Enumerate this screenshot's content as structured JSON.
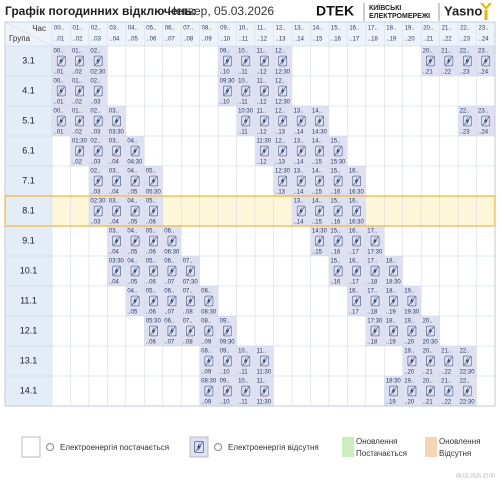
{
  "header": {
    "title": "Графік погодинних відключень:",
    "date": "Четвер, 05.03.2026",
    "brand": "DTEK",
    "brand_sub1": "КИЇВСЬКІ",
    "brand_sub2": "ЕЛЕКТРОМЕРЕЖІ",
    "brand2": "Yasno"
  },
  "table": {
    "time_label": "Час",
    "group_label": "Група",
    "outage_color": "#dfe1f3",
    "hours": [
      [
        "00..",
        "..01"
      ],
      [
        "01..",
        "..02"
      ],
      [
        "02..",
        "..03"
      ],
      [
        "03..",
        "..04"
      ],
      [
        "04..",
        "..05"
      ],
      [
        "05..",
        "..06"
      ],
      [
        "06..",
        "..07"
      ],
      [
        "07..",
        "..08"
      ],
      [
        "08..",
        "..09"
      ],
      [
        "09..",
        "..10"
      ],
      [
        "10..",
        "..11"
      ],
      [
        "11..",
        "..12"
      ],
      [
        "12..",
        "..13"
      ],
      [
        "13..",
        "..14"
      ],
      [
        "14..",
        "..15"
      ],
      [
        "15..",
        "..16"
      ],
      [
        "16..",
        "..17"
      ],
      [
        "17..",
        "..18"
      ],
      [
        "18..",
        "..19"
      ],
      [
        "19..",
        "..20"
      ],
      [
        "20..",
        "..21"
      ],
      [
        "21..",
        "..22"
      ],
      [
        "22..",
        "..23"
      ],
      [
        "23..",
        "..24"
      ]
    ],
    "groups": [
      {
        "name": "3.1",
        "cells": [
          [
            0,
            "00..",
            "..01"
          ],
          [
            1,
            "01..",
            "..02"
          ],
          [
            2,
            "02..",
            "02:30"
          ],
          [
            9,
            "09..",
            "..10"
          ],
          [
            10,
            "10..",
            "..11"
          ],
          [
            11,
            "11..",
            "..12"
          ],
          [
            12,
            "12..",
            "12:30"
          ],
          [
            20,
            "20..",
            "..21"
          ],
          [
            21,
            "21..",
            "..22"
          ],
          [
            22,
            "22..",
            "..23"
          ],
          [
            23,
            "23..",
            "..24"
          ]
        ]
      },
      {
        "name": "4.1",
        "cells": [
          [
            0,
            "00..",
            "..01"
          ],
          [
            1,
            "01..",
            "..02"
          ],
          [
            2,
            "02..",
            "..03"
          ],
          [
            9,
            "09:30",
            "..10"
          ],
          [
            10,
            "10..",
            "..11"
          ],
          [
            11,
            "11..",
            "..12"
          ],
          [
            12,
            "12..",
            "12:30"
          ]
        ]
      },
      {
        "name": "5.1",
        "cells": [
          [
            0,
            "00..",
            "..01"
          ],
          [
            1,
            "01..",
            "..02"
          ],
          [
            2,
            "02..",
            "..03"
          ],
          [
            3,
            "03..",
            "03:30"
          ],
          [
            10,
            "10:30",
            "..11"
          ],
          [
            11,
            "11..",
            "..12"
          ],
          [
            12,
            "12..",
            "..13"
          ],
          [
            13,
            "13..",
            "..14"
          ],
          [
            14,
            "14..",
            "14:30"
          ],
          [
            22,
            "22..",
            "..23"
          ],
          [
            23,
            "23..",
            "..24"
          ]
        ]
      },
      {
        "name": "6.1",
        "cells": [
          [
            1,
            "01:30",
            "..02"
          ],
          [
            2,
            "02..",
            "..03"
          ],
          [
            3,
            "03..",
            "..04"
          ],
          [
            4,
            "04..",
            "04:30"
          ],
          [
            11,
            "11:30",
            "..12"
          ],
          [
            12,
            "12..",
            "..13"
          ],
          [
            13,
            "13..",
            "..14"
          ],
          [
            14,
            "14..",
            "..15"
          ],
          [
            15,
            "15..",
            "15:30"
          ]
        ]
      },
      {
        "name": "7.1",
        "cells": [
          [
            2,
            "02..",
            "..03"
          ],
          [
            3,
            "03..",
            "..04"
          ],
          [
            4,
            "04..",
            "..05"
          ],
          [
            5,
            "05..",
            "05:30"
          ],
          [
            12,
            "12:30",
            "..13"
          ],
          [
            13,
            "13..",
            "..14"
          ],
          [
            14,
            "14..",
            "..15"
          ],
          [
            15,
            "15..",
            "..16"
          ],
          [
            16,
            "16..",
            "16:30"
          ]
        ]
      },
      {
        "name": "8.1",
        "highlighted": true,
        "cells": [
          [
            2,
            "02:30",
            "..03"
          ],
          [
            3,
            "03..",
            "..04"
          ],
          [
            4,
            "04..",
            "..05"
          ],
          [
            5,
            "05..",
            "..06"
          ],
          [
            13,
            "13..",
            "..14"
          ],
          [
            14,
            "14..",
            "..15"
          ],
          [
            15,
            "15..",
            "..16"
          ],
          [
            16,
            "16..",
            "16:30"
          ]
        ]
      },
      {
        "name": "9.1",
        "cells": [
          [
            3,
            "03..",
            "..04"
          ],
          [
            4,
            "04..",
            "..05"
          ],
          [
            5,
            "05..",
            "..06"
          ],
          [
            6,
            "06..",
            "06:30"
          ],
          [
            14,
            "14:30",
            "..15"
          ],
          [
            15,
            "15..",
            "..16"
          ],
          [
            16,
            "16..",
            "..17"
          ],
          [
            17,
            "17..",
            "17:30"
          ]
        ]
      },
      {
        "name": "10.1",
        "cells": [
          [
            3,
            "03:30",
            "..04"
          ],
          [
            4,
            "04..",
            "..05"
          ],
          [
            5,
            "05..",
            "..06"
          ],
          [
            6,
            "06..",
            "..07"
          ],
          [
            7,
            "07..",
            "07:30"
          ],
          [
            15,
            "15..",
            "..16"
          ],
          [
            16,
            "16..",
            "..17"
          ],
          [
            17,
            "17..",
            "..18"
          ],
          [
            18,
            "18..",
            "18:30"
          ]
        ]
      },
      {
        "name": "11.1",
        "cells": [
          [
            4,
            "04..",
            "..05"
          ],
          [
            5,
            "05..",
            "..06"
          ],
          [
            6,
            "06..",
            "..07"
          ],
          [
            7,
            "07..",
            "..08"
          ],
          [
            8,
            "08..",
            "08:30"
          ],
          [
            16,
            "16..",
            "..17"
          ],
          [
            17,
            "17..",
            "..18"
          ],
          [
            18,
            "18..",
            "..19"
          ],
          [
            19,
            "19..",
            "19:30"
          ]
        ]
      },
      {
        "name": "12.1",
        "cells": [
          [
            5,
            "05:30",
            "..06"
          ],
          [
            6,
            "06..",
            "..07"
          ],
          [
            7,
            "07..",
            "..08"
          ],
          [
            8,
            "08..",
            "..09"
          ],
          [
            9,
            "09..",
            "09:30"
          ],
          [
            17,
            "17:30",
            "..18"
          ],
          [
            18,
            "18..",
            "..19"
          ],
          [
            19,
            "19..",
            "..20"
          ],
          [
            20,
            "20..",
            "20:30"
          ]
        ]
      },
      {
        "name": "13.1",
        "cells": [
          [
            8,
            "08..",
            "..09"
          ],
          [
            9,
            "09..",
            "..10"
          ],
          [
            10,
            "10..",
            "..11"
          ],
          [
            11,
            "11..",
            "11:30"
          ],
          [
            19,
            "19..",
            "..20"
          ],
          [
            20,
            "20..",
            "..21"
          ],
          [
            21,
            "21..",
            "..22"
          ],
          [
            22,
            "22..",
            "22:30"
          ]
        ]
      },
      {
        "name": "14.1",
        "cells": [
          [
            8,
            "08:30",
            "..09"
          ],
          [
            9,
            "09..",
            "..10"
          ],
          [
            10,
            "10..",
            "..11"
          ],
          [
            11,
            "11..",
            "11:30"
          ],
          [
            18,
            "18:30",
            "..19"
          ],
          [
            19,
            "19..",
            "..20"
          ],
          [
            20,
            "20..",
            "..21"
          ],
          [
            21,
            "21..",
            "..22"
          ],
          [
            22,
            "22..",
            "22:30"
          ]
        ]
      }
    ]
  },
  "legend": {
    "supply": "Електроенергія постачається",
    "outage": "Електроенергія відсутня",
    "update_supply": [
      "Оновлення",
      "Постачається"
    ],
    "update_outage": [
      "Оновлення",
      "Відсутня"
    ]
  },
  "footer": "05.03.2026   22:00"
}
